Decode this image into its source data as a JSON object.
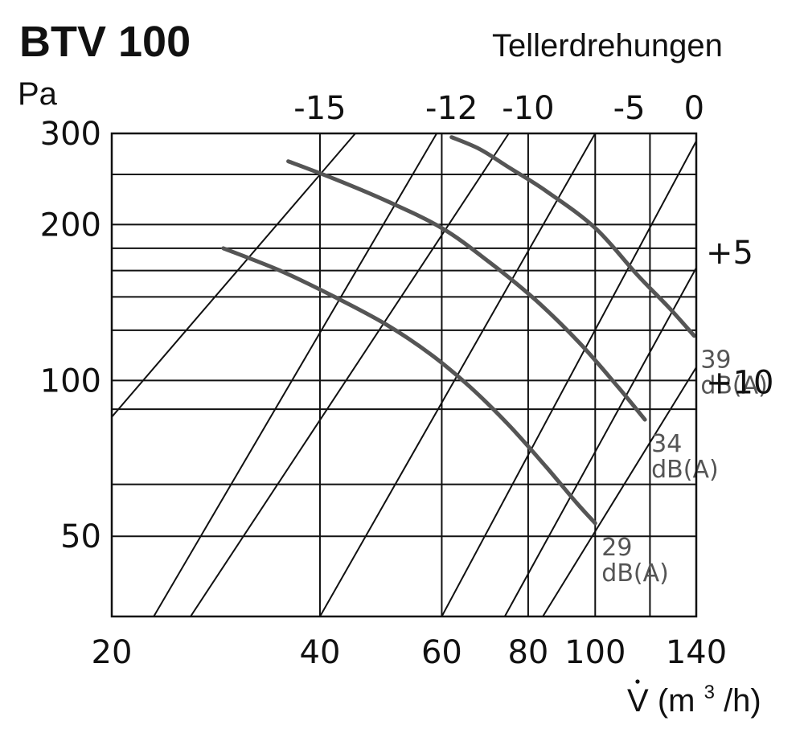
{
  "chart_data": {
    "type": "line",
    "title": "BTV 100",
    "ylabel": "Pa",
    "top_label": "Tellerdrehungen",
    "x_scale": "log",
    "y_scale": "log",
    "xlim": [
      20,
      140
    ],
    "ylim": [
      35,
      300
    ],
    "x_ticks": [
      {
        "value": 20,
        "label": "20"
      },
      {
        "value": 40,
        "label": "40"
      },
      {
        "value": 60,
        "label": "60"
      },
      {
        "value": 80,
        "label": "80"
      },
      {
        "value": 100,
        "label": "100"
      },
      {
        "value": 140,
        "label": "140"
      }
    ],
    "y_ticks": [
      {
        "value": 300,
        "label": "300"
      },
      {
        "value": 200,
        "label": "200"
      },
      {
        "value": 100,
        "label": "100"
      },
      {
        "value": 50,
        "label": "50"
      }
    ],
    "x_gridlines": [
      40,
      60,
      80,
      100,
      120
    ],
    "y_gridlines": [
      250,
      200,
      180,
      163,
      145,
      125,
      100,
      88,
      63,
      50
    ],
    "turn_labels_top": [
      {
        "label": "-15",
        "x": 40
      },
      {
        "label": "-12",
        "x": 62
      },
      {
        "label": "-10",
        "x": 80
      },
      {
        "label": "-5",
        "x": 112
      },
      {
        "label": "0",
        "x": 139
      }
    ],
    "turn_labels_right": [
      {
        "label": "+5",
        "y": 178
      },
      {
        "label": "+10",
        "y": 100
      }
    ],
    "turn_lines": [
      {
        "x1": 20,
        "y1": 85,
        "x2": 45,
        "y2": 300
      },
      {
        "x1": 23,
        "y1": 35,
        "x2": 59,
        "y2": 300
      },
      {
        "x1": 26,
        "y1": 35,
        "x2": 75,
        "y2": 300
      },
      {
        "x1": 40,
        "y1": 35,
        "x2": 100,
        "y2": 300
      },
      {
        "x1": 60,
        "y1": 35,
        "x2": 140,
        "y2": 290
      },
      {
        "x1": 74,
        "y1": 35,
        "x2": 140,
        "y2": 165
      },
      {
        "x1": 84,
        "y1": 35,
        "x2": 140,
        "y2": 106
      }
    ],
    "x_axis_label_prefix": "V",
    "x_axis_label_units": " (m",
    "x_axis_label_sup": "3",
    "x_axis_label_suffix": "/h)",
    "series": [
      {
        "name": "39 dB(A)",
        "label_line1": "39",
        "label_line2": "dB(A)",
        "color": "#555555",
        "points": [
          [
            62,
            295
          ],
          [
            68,
            280
          ],
          [
            75,
            258
          ],
          [
            85,
            232
          ],
          [
            100,
            197
          ],
          [
            115,
            160
          ],
          [
            128,
            138
          ],
          [
            139,
            122
          ]
        ]
      },
      {
        "name": "34 dB(A)",
        "label_line1": "34",
        "label_line2": "dB(A)",
        "color": "#555555",
        "points": [
          [
            36,
            265
          ],
          [
            42,
            245
          ],
          [
            50,
            222
          ],
          [
            60,
            197
          ],
          [
            70,
            170
          ],
          [
            82,
            143
          ],
          [
            95,
            118
          ],
          [
            108,
            97
          ],
          [
            118,
            84
          ]
        ]
      },
      {
        "name": "29 dB(A)",
        "label_line1": "29",
        "label_line2": "dB(A)",
        "color": "#555555",
        "points": [
          [
            29,
            180
          ],
          [
            35,
            163
          ],
          [
            42,
            145
          ],
          [
            50,
            128
          ],
          [
            58,
            112
          ],
          [
            66,
            97
          ],
          [
            75,
            82
          ],
          [
            85,
            68
          ],
          [
            94,
            58
          ],
          [
            100,
            53
          ]
        ]
      }
    ]
  }
}
